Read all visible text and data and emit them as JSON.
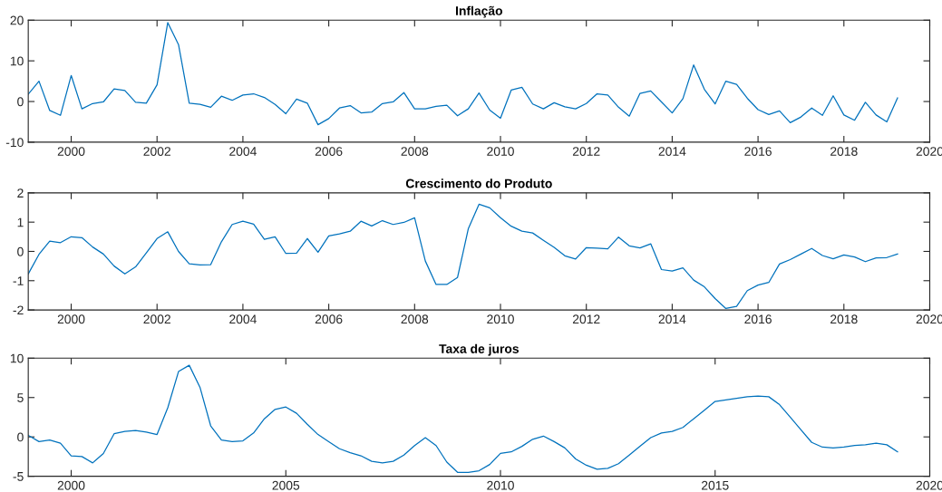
{
  "chart_data": [
    {
      "type": "line",
      "title": "Inflação",
      "color": "#0072bd",
      "x": [
        1999,
        1999.25,
        1999.5,
        1999.75,
        2000,
        2000.25,
        2000.5,
        2000.75,
        2001,
        2001.25,
        2001.5,
        2001.75,
        2002,
        2002.25,
        2002.5,
        2002.75,
        2003,
        2003.25,
        2003.5,
        2003.75,
        2004,
        2004.25,
        2004.5,
        2004.75,
        2005,
        2005.25,
        2005.5,
        2005.75,
        2006,
        2006.25,
        2006.5,
        2006.75,
        2007,
        2007.25,
        2007.5,
        2007.75,
        2008,
        2008.25,
        2008.5,
        2008.75,
        2009,
        2009.25,
        2009.5,
        2009.75,
        2010,
        2010.25,
        2010.5,
        2010.75,
        2011,
        2011.25,
        2011.5,
        2011.75,
        2012,
        2012.25,
        2012.5,
        2012.75,
        2013,
        2013.25,
        2013.5,
        2013.75,
        2014,
        2014.25,
        2014.5,
        2014.75,
        2015,
        2015.25,
        2015.5,
        2015.75,
        2016,
        2016.25,
        2016.5,
        2016.75,
        2017,
        2017.25,
        2017.5,
        2017.75,
        2018,
        2018.25,
        2018.5,
        2018.75,
        2019,
        2019.25
      ],
      "values": [
        1.8,
        5.0,
        -2.2,
        -3.4,
        6.4,
        -1.8,
        -0.5,
        -0.1,
        3.1,
        2.7,
        -0.2,
        -0.4,
        4.1,
        19.4,
        14.0,
        -0.4,
        -0.7,
        -1.4,
        1.3,
        0.3,
        1.6,
        1.9,
        1.0,
        -0.7,
        -3.0,
        0.6,
        -0.4,
        -5.7,
        -4.2,
        -1.6,
        -1.0,
        -2.8,
        -2.6,
        -0.5,
        -0.1,
        2.2,
        -1.8,
        -1.8,
        -1.2,
        -0.9,
        -3.5,
        -1.8,
        2.1,
        -2.1,
        -4.1,
        2.8,
        3.5,
        -0.6,
        -1.8,
        -0.3,
        -1.3,
        -1.8,
        -0.5,
        1.9,
        1.6,
        -1.4,
        -3.6,
        2.0,
        2.6,
        -0.1,
        -2.8,
        0.7,
        9.0,
        3.0,
        -0.6,
        5.0,
        4.2,
        0.8,
        -2.0,
        -3.2,
        -2.3,
        -5.2,
        -3.8,
        -1.6,
        -3.4,
        1.4,
        -3.3,
        -4.6,
        -0.2,
        -3.3,
        -5.0,
        0.9
      ],
      "xlim": [
        1999,
        2020
      ],
      "xticks": [
        2000,
        2002,
        2004,
        2006,
        2008,
        2010,
        2012,
        2014,
        2016,
        2018,
        2020
      ],
      "ylim": [
        -10,
        20
      ],
      "yticks": [
        -10,
        0,
        10,
        20
      ],
      "grid": false
    },
    {
      "type": "line",
      "title": "Crescimento do Produto",
      "color": "#0072bd",
      "x": [
        1999,
        1999.25,
        1999.5,
        1999.75,
        2000,
        2000.25,
        2000.5,
        2000.75,
        2001,
        2001.25,
        2001.5,
        2001.75,
        2002,
        2002.25,
        2002.5,
        2002.75,
        2003,
        2003.25,
        2003.5,
        2003.75,
        2004,
        2004.25,
        2004.5,
        2004.75,
        2005,
        2005.25,
        2005.5,
        2005.75,
        2006,
        2006.25,
        2006.5,
        2006.75,
        2007,
        2007.25,
        2007.5,
        2007.75,
        2008,
        2008.25,
        2008.5,
        2008.75,
        2009,
        2009.25,
        2009.5,
        2009.75,
        2010,
        2010.25,
        2010.5,
        2010.75,
        2011,
        2011.25,
        2011.5,
        2011.75,
        2012,
        2012.25,
        2012.5,
        2012.75,
        2013,
        2013.25,
        2013.5,
        2013.75,
        2014,
        2014.25,
        2014.5,
        2014.75,
        2015,
        2015.25,
        2015.5,
        2015.75,
        2016,
        2016.25,
        2016.5,
        2016.75,
        2017,
        2017.25,
        2017.5,
        2017.75,
        2018,
        2018.25,
        2018.5,
        2018.75,
        2019,
        2019.25
      ],
      "values": [
        -0.77,
        -0.1,
        0.35,
        0.3,
        0.5,
        0.47,
        0.15,
        -0.09,
        -0.5,
        -0.77,
        -0.53,
        -0.05,
        0.44,
        0.67,
        0.0,
        -0.42,
        -0.46,
        -0.45,
        0.33,
        0.92,
        1.03,
        0.93,
        0.41,
        0.5,
        -0.07,
        -0.06,
        0.44,
        -0.03,
        0.53,
        0.6,
        0.69,
        1.03,
        0.87,
        1.05,
        0.92,
        0.99,
        1.15,
        -0.33,
        -1.13,
        -1.13,
        -0.89,
        0.77,
        1.61,
        1.49,
        1.15,
        0.86,
        0.69,
        0.63,
        0.38,
        0.14,
        -0.15,
        -0.26,
        0.13,
        0.11,
        0.09,
        0.49,
        0.19,
        0.12,
        0.26,
        -0.62,
        -0.67,
        -0.56,
        -0.98,
        -1.21,
        -1.61,
        -1.95,
        -1.88,
        -1.34,
        -1.15,
        -1.06,
        -0.43,
        -0.28,
        -0.09,
        0.1,
        -0.14,
        -0.25,
        -0.12,
        -0.19,
        -0.35,
        -0.22,
        -0.21,
        -0.09
      ],
      "xlim": [
        1999,
        2020
      ],
      "xticks": [
        2000,
        2002,
        2004,
        2006,
        2008,
        2010,
        2012,
        2014,
        2016,
        2018,
        2020
      ],
      "ylim": [
        -2,
        2
      ],
      "yticks": [
        -2,
        -1,
        0,
        1,
        2
      ],
      "grid": false
    },
    {
      "type": "line",
      "title": "Taxa de juros",
      "color": "#0072bd",
      "x": [
        1999,
        1999.25,
        1999.5,
        1999.75,
        2000,
        2000.25,
        2000.5,
        2000.75,
        2001,
        2001.25,
        2001.5,
        2001.75,
        2002,
        2002.25,
        2002.5,
        2002.75,
        2003,
        2003.25,
        2003.5,
        2003.75,
        2004,
        2004.25,
        2004.5,
        2004.75,
        2005,
        2005.25,
        2005.5,
        2005.75,
        2006,
        2006.25,
        2006.5,
        2006.75,
        2007,
        2007.25,
        2007.5,
        2007.75,
        2008,
        2008.25,
        2008.5,
        2008.75,
        2009,
        2009.25,
        2009.5,
        2009.75,
        2010,
        2010.25,
        2010.5,
        2010.75,
        2011,
        2011.25,
        2011.5,
        2011.75,
        2012,
        2012.25,
        2012.5,
        2012.75,
        2013,
        2013.25,
        2013.5,
        2013.75,
        2014,
        2014.25,
        2014.5,
        2014.75,
        2015,
        2015.25,
        2015.5,
        2015.75,
        2016,
        2016.25,
        2016.5,
        2016.75,
        2017,
        2017.25,
        2017.5,
        2017.75,
        2018,
        2018.25,
        2018.5,
        2018.75,
        2019,
        2019.25
      ],
      "values": [
        0.2,
        -0.6,
        -0.4,
        -0.8,
        -2.4,
        -2.5,
        -3.3,
        -2.1,
        0.4,
        0.7,
        0.8,
        0.6,
        0.3,
        3.7,
        8.3,
        9.1,
        6.3,
        1.4,
        -0.4,
        -0.6,
        -0.5,
        0.5,
        2.3,
        3.5,
        3.8,
        3.0,
        1.6,
        0.3,
        -0.6,
        -1.5,
        -2.0,
        -2.4,
        -3.1,
        -3.3,
        -3.1,
        -2.3,
        -1.1,
        -0.1,
        -1.1,
        -3.2,
        -4.5,
        -4.5,
        -4.3,
        -3.5,
        -2.1,
        -1.9,
        -1.2,
        -0.3,
        0.1,
        -0.6,
        -1.4,
        -2.8,
        -3.6,
        -4.1,
        -4.0,
        -3.4,
        -2.3,
        -1.2,
        -0.1,
        0.5,
        0.7,
        1.2,
        2.3,
        3.4,
        4.5,
        4.7,
        4.9,
        5.1,
        5.2,
        5.1,
        4.1,
        2.5,
        0.9,
        -0.7,
        -1.3,
        -1.4,
        -1.3,
        -1.1,
        -1.0,
        -0.8,
        -1.0,
        -1.9
      ],
      "xlim": [
        1999,
        2020
      ],
      "xticks": [
        2000,
        2005,
        2010,
        2015,
        2020
      ],
      "ylim": [
        -5,
        10
      ],
      "yticks": [
        -5,
        0,
        5,
        10
      ],
      "grid": false
    }
  ]
}
